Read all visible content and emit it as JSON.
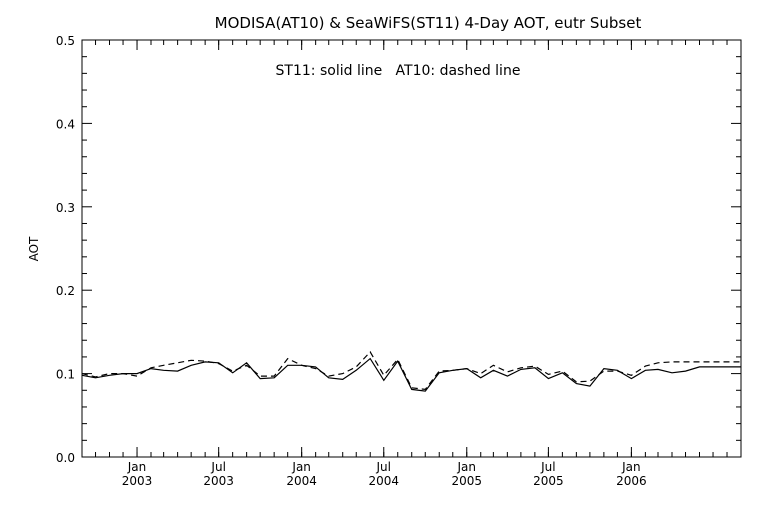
{
  "chart_data": {
    "type": "line",
    "title": "MODISA(AT10) & SeaWiFS(ST11) 4-Day AOT, eutr Subset",
    "annotation": "ST11: solid line   AT10: dashed line",
    "xlabel": "",
    "ylabel": "AOT",
    "ylim": [
      0.0,
      0.5
    ],
    "xlim": [
      "2002-09-01",
      "2006-09-01"
    ],
    "grid": false,
    "yticks": [
      "0.0",
      "0.1",
      "0.2",
      "0.3",
      "0.4",
      "0.5"
    ],
    "xticks": [
      {
        "date": "2003-01-01",
        "line1": "Jan",
        "line2": "2003"
      },
      {
        "date": "2003-07-01",
        "line1": "Jul",
        "line2": "2003"
      },
      {
        "date": "2004-01-01",
        "line1": "Jan",
        "line2": "2004"
      },
      {
        "date": "2004-07-01",
        "line1": "Jul",
        "line2": "2004"
      },
      {
        "date": "2005-01-01",
        "line1": "Jan",
        "line2": "2005"
      },
      {
        "date": "2005-07-01",
        "line1": "Jul",
        "line2": "2005"
      },
      {
        "date": "2006-01-01",
        "line1": "Jan",
        "line2": "2006"
      }
    ],
    "x": [
      "2002-09-01",
      "2002-10-01",
      "2002-11-01",
      "2002-12-01",
      "2003-01-01",
      "2003-02-01",
      "2003-03-01",
      "2003-04-01",
      "2003-05-01",
      "2003-06-01",
      "2003-07-01",
      "2003-08-01",
      "2003-09-01",
      "2003-10-01",
      "2003-11-01",
      "2003-12-01",
      "2004-01-01",
      "2004-02-01",
      "2004-03-01",
      "2004-04-01",
      "2004-05-01",
      "2004-06-01",
      "2004-07-01",
      "2004-08-01",
      "2004-09-01",
      "2004-10-01",
      "2004-11-01",
      "2004-12-01",
      "2005-01-01",
      "2005-02-01",
      "2005-03-01",
      "2005-04-01",
      "2005-05-01",
      "2005-06-01",
      "2005-07-01",
      "2005-08-01",
      "2005-09-01",
      "2005-10-01",
      "2005-11-01",
      "2005-12-01",
      "2006-01-01",
      "2006-02-01",
      "2006-03-01",
      "2006-04-01",
      "2006-05-01",
      "2006-06-01",
      "2006-07-01",
      "2006-08-01",
      "2006-09-01"
    ],
    "series": [
      {
        "name": "ST11",
        "style": "solid",
        "values": [
          0.098,
          0.095,
          0.098,
          0.1,
          0.1,
          0.106,
          0.104,
          0.103,
          0.11,
          0.114,
          0.113,
          0.101,
          0.113,
          0.094,
          0.095,
          0.11,
          0.11,
          0.108,
          0.095,
          0.093,
          0.104,
          0.118,
          0.092,
          0.115,
          0.081,
          0.079,
          0.101,
          0.104,
          0.106,
          0.095,
          0.104,
          0.097,
          0.105,
          0.107,
          0.094,
          0.101,
          0.088,
          0.085,
          0.106,
          0.104,
          0.094,
          0.104,
          0.105,
          0.101,
          0.103,
          0.108,
          0.108,
          0.108,
          0.108
        ]
      },
      {
        "name": "AT10",
        "style": "dashed",
        "values": [
          0.1,
          0.096,
          0.1,
          0.1,
          0.097,
          0.107,
          0.11,
          0.113,
          0.116,
          0.115,
          0.112,
          0.103,
          0.11,
          0.097,
          0.097,
          0.118,
          0.11,
          0.106,
          0.097,
          0.1,
          0.108,
          0.126,
          0.098,
          0.117,
          0.083,
          0.081,
          0.103,
          0.104,
          0.106,
          0.1,
          0.11,
          0.102,
          0.107,
          0.109,
          0.099,
          0.103,
          0.09,
          0.091,
          0.103,
          0.103,
          0.098,
          0.109,
          0.113,
          0.114,
          0.114,
          0.114,
          0.114,
          0.114,
          0.114
        ]
      }
    ]
  }
}
